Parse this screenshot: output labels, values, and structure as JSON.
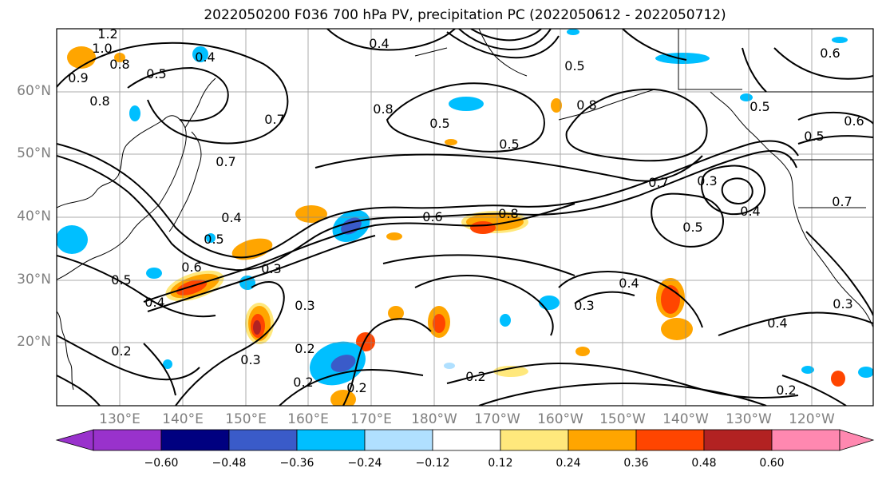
{
  "title": "2022050200 F036 700 hPa PV, precipitation PC (2022050612 - 2022050712)",
  "lat_labels": [
    "60°N",
    "50°N",
    "40°N",
    "30°N",
    "20°N"
  ],
  "lon_labels": [
    "130°E",
    "140°E",
    "150°E",
    "160°E",
    "170°E",
    "180°W",
    "170°W",
    "160°W",
    "150°W",
    "140°W",
    "130°W",
    "120°W"
  ],
  "colorbar": {
    "ticks": [
      "−0.60",
      "−0.48",
      "−0.36",
      "−0.24",
      "−0.12",
      "0.12",
      "0.24",
      "0.36",
      "0.48",
      "0.60"
    ],
    "colors": [
      "#9932cc",
      "#000080",
      "#3a5bc9",
      "#00bfff",
      "#b0e0ff",
      "#ffffff",
      "#ffe87c",
      "#ffa500",
      "#ff4500",
      "#b22222",
      "#ff88b0"
    ]
  },
  "contour_labels": [
    "1.2",
    "1.0",
    "0.8",
    "0.9",
    "0.8",
    "0.5",
    "0.4",
    "0.4",
    "0.8",
    "0.7",
    "0.5",
    "0.5",
    "0.8",
    "0.5",
    "0.5",
    "0.6",
    "0.5",
    "0.7",
    "0.7",
    "0.3",
    "0.4",
    "0.4",
    "0.6",
    "0.8",
    "0.5",
    "0.4",
    "0.5",
    "0.6",
    "0.5",
    "0.4",
    "0.3",
    "0.3",
    "0.2",
    "0.3",
    "0.2",
    "0.2",
    "0.2",
    "0.2",
    "0.3",
    "0.4",
    "0.2",
    "0.3",
    "0.7",
    "0.6"
  ]
}
